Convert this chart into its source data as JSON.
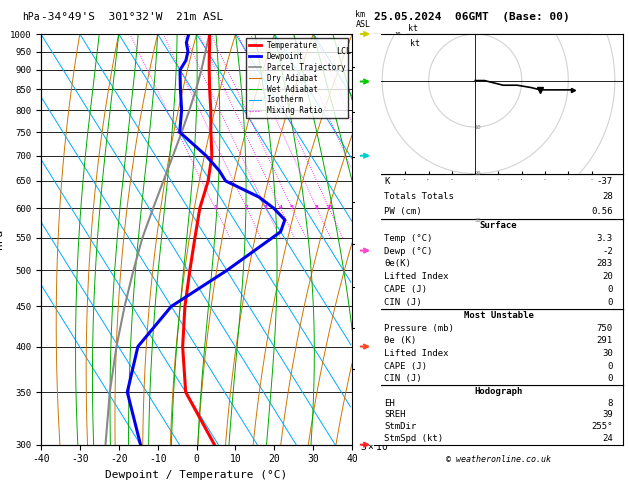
{
  "title_left": "-34°49'S  301°32'W  21m ASL",
  "title_right": "25.05.2024  06GMT  (Base: 00)",
  "xlabel": "Dewpoint / Temperature (°C)",
  "ylabel_left": "hPa",
  "pressure_ticks": [
    300,
    350,
    400,
    450,
    500,
    550,
    600,
    650,
    700,
    750,
    800,
    850,
    900,
    950,
    1000
  ],
  "km_ticks": [
    1,
    2,
    3,
    4,
    5,
    6,
    7,
    8
  ],
  "km_pressures": [
    907,
    795,
    697,
    612,
    540,
    477,
    422,
    374
  ],
  "lcl_pressure": 950,
  "temp_profile_p": [
    1000,
    975,
    950,
    925,
    900,
    850,
    800,
    750,
    700,
    650,
    600,
    550,
    500,
    450,
    400,
    350,
    300
  ],
  "temp_profile_t": [
    3.3,
    2.0,
    0.5,
    -1.0,
    -2.5,
    -5.5,
    -8.5,
    -12.0,
    -15.5,
    -20.5,
    -27.0,
    -33.0,
    -39.5,
    -46.5,
    -53.5,
    -60.0,
    -61.0
  ],
  "dewp_profile_p": [
    1000,
    975,
    950,
    925,
    900,
    850,
    800,
    750,
    700,
    670,
    650,
    620,
    600,
    580,
    560,
    500,
    450,
    400,
    350,
    300
  ],
  "dewp_profile_t": [
    -2,
    -4,
    -5,
    -7,
    -10,
    -13,
    -16,
    -20,
    -17,
    -16,
    -16,
    -10,
    -8,
    -7,
    -10,
    -30,
    -50,
    -65,
    -75,
    -80
  ],
  "parcel_profile_p": [
    1000,
    950,
    900,
    850,
    800,
    750,
    700,
    650,
    600,
    550,
    500,
    450,
    400,
    350,
    300
  ],
  "parcel_profile_t": [
    3.3,
    -0.5,
    -4.5,
    -9.0,
    -14.0,
    -19.5,
    -25.5,
    -32.0,
    -39.0,
    -46.5,
    -54.0,
    -62.0,
    -70.5,
    -79.5,
    -89.0
  ],
  "colors": {
    "temperature": "#ff0000",
    "dewpoint": "#0000ee",
    "parcel": "#888888",
    "dry_adiabat": "#cc7700",
    "wet_adiabat": "#00aa00",
    "isotherm": "#00aaff",
    "mixing_ratio": "#ff00ff",
    "background": "#ffffff",
    "grid": "#000000"
  },
  "mixing_ratio_values": [
    1,
    2,
    3,
    4,
    5,
    8,
    10,
    20,
    28
  ],
  "indices_rows": [
    [
      "K",
      "-37"
    ],
    [
      "Totals Totals",
      "28"
    ],
    [
      "PW (cm)",
      "0.56"
    ]
  ],
  "surface_rows": [
    [
      "Temp (°C)",
      "3.3"
    ],
    [
      "Dewp (°C)",
      "-2"
    ],
    [
      "θe(K)",
      "283"
    ],
    [
      "Lifted Index",
      "20"
    ],
    [
      "CAPE (J)",
      "0"
    ],
    [
      "CIN (J)",
      "0"
    ]
  ],
  "mu_rows": [
    [
      "Pressure (mb)",
      "750"
    ],
    [
      "θe (K)",
      "291"
    ],
    [
      "Lifted Index",
      "30"
    ],
    [
      "CAPE (J)",
      "0"
    ],
    [
      "CIN (J)",
      "0"
    ]
  ],
  "hodo_rows": [
    [
      "EH",
      "8"
    ],
    [
      "SREH",
      "39"
    ],
    [
      "StmDir",
      "255°"
    ],
    [
      "StmSpd (kt)",
      "24"
    ]
  ],
  "legend_entries": [
    [
      "Temperature",
      "#ff0000",
      "solid",
      2.0
    ],
    [
      "Dewpoint",
      "#0000ee",
      "solid",
      2.0
    ],
    [
      "Parcel Trajectory",
      "#888888",
      "solid",
      1.2
    ],
    [
      "Dry Adiabat",
      "#cc7700",
      "solid",
      0.8
    ],
    [
      "Wet Adiabat",
      "#00aa00",
      "solid",
      0.8
    ],
    [
      "Isotherm",
      "#00aaff",
      "solid",
      0.8
    ],
    [
      "Mixing Ratio",
      "#ff00ff",
      "dotted",
      0.8
    ]
  ]
}
